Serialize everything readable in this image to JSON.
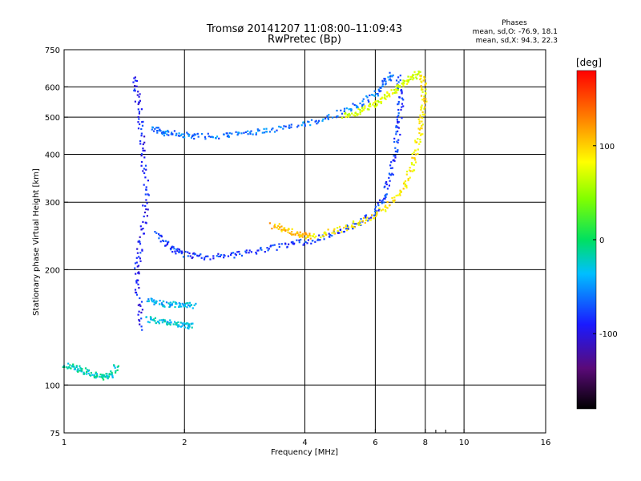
{
  "chart_data": {
    "type": "scatter",
    "title": "Tromsø 20141207 11:08:00–11:09:43",
    "subtitle": "RwPretec (Bp)",
    "stats_heading": "Phases",
    "stats_lines": [
      "mean, sd,O: -76.9, 18.1",
      "mean, sd,X:  94.3, 22.3"
    ],
    "xlabel": "Frequency [MHz]",
    "ylabel": "Stationary phase Virtual Height [km]",
    "xscale": "log",
    "yscale": "log",
    "xlim": [
      1,
      16
    ],
    "ylim": [
      75,
      750
    ],
    "xticks": [
      1,
      2,
      4,
      6,
      8,
      10,
      16
    ],
    "xticks_minor": [
      8.5,
      9
    ],
    "yticks": [
      75,
      100,
      200,
      300,
      400,
      500,
      600,
      750
    ],
    "xgrid": [
      2,
      4,
      6,
      8,
      10
    ],
    "ygrid": [
      100,
      200,
      300,
      400,
      500,
      600
    ],
    "grid": true,
    "colorbar": {
      "label": "[deg]",
      "range": [
        -180,
        180
      ],
      "ticks": [
        100,
        0,
        -100
      ]
    },
    "traces": [
      {
        "name": "",
        "phase": -90,
        "x": [
          1.5,
          1.52,
          1.55,
          1.57,
          1.6,
          1.58,
          1.54,
          1.51,
          1.53,
          1.56
        ],
        "y": [
          640,
          560,
          480,
          400,
          330,
          270,
          230,
          200,
          170,
          140
        ]
      },
      {
        "name": "",
        "phase": -60,
        "x": [
          1.65,
          1.75,
          1.85,
          2.0,
          2.2,
          2.5,
          2.8,
          3.1,
          3.5,
          4.0,
          4.5,
          5.0,
          5.5,
          6.0,
          6.3,
          6.6
        ],
        "y": [
          470,
          460,
          455,
          450,
          448,
          450,
          455,
          462,
          470,
          482,
          500,
          520,
          545,
          580,
          620,
          650
        ]
      },
      {
        "name": "",
        "phase": -80,
        "x": [
          1.7,
          1.8,
          1.9,
          2.0,
          2.2,
          2.5,
          2.8,
          3.2,
          3.6,
          4.0,
          4.5,
          5.0,
          5.5,
          6.0,
          6.3,
          6.5,
          6.7,
          6.8,
          6.9,
          6.9,
          6.8
        ],
        "y": [
          250,
          235,
          225,
          220,
          217,
          218,
          222,
          228,
          233,
          238,
          245,
          255,
          268,
          285,
          310,
          350,
          400,
          460,
          520,
          580,
          640
        ]
      },
      {
        "name": "",
        "phase": 90,
        "x": [
          4.0,
          4.5,
          5.0,
          5.5,
          6.0,
          6.5,
          7.0,
          7.3,
          7.5,
          7.7,
          7.8,
          7.9,
          7.9,
          7.8
        ],
        "y": [
          245,
          250,
          258,
          268,
          280,
          298,
          325,
          360,
          400,
          450,
          500,
          550,
          600,
          650
        ]
      },
      {
        "name": "",
        "phase": 70,
        "x": [
          5.0,
          5.3,
          5.6,
          5.9,
          6.2,
          6.5,
          6.8,
          7.1,
          7.4,
          7.7
        ],
        "y": [
          505,
          515,
          525,
          540,
          560,
          580,
          600,
          620,
          640,
          655
        ]
      },
      {
        "name": "",
        "phase": 110,
        "x": [
          3.3,
          3.5,
          3.7,
          3.9,
          4.1
        ],
        "y": [
          262,
          258,
          252,
          248,
          246
        ]
      },
      {
        "name": "",
        "phase": -20,
        "x": [
          1.0,
          1.05,
          1.1,
          1.15,
          1.2,
          1.25,
          1.3,
          1.35
        ],
        "y": [
          113,
          112,
          110,
          108,
          106,
          105,
          107,
          112
        ]
      },
      {
        "name": "",
        "phase": -40,
        "x": [
          1.6,
          1.7,
          1.8,
          1.9,
          2.0,
          2.1
        ],
        "y": [
          168,
          165,
          163,
          163,
          162,
          162
        ]
      },
      {
        "name": "",
        "phase": -30,
        "x": [
          1.6,
          1.7,
          1.8,
          1.9,
          2.0,
          2.1
        ],
        "y": [
          150,
          148,
          146,
          145,
          144,
          143
        ]
      }
    ]
  }
}
